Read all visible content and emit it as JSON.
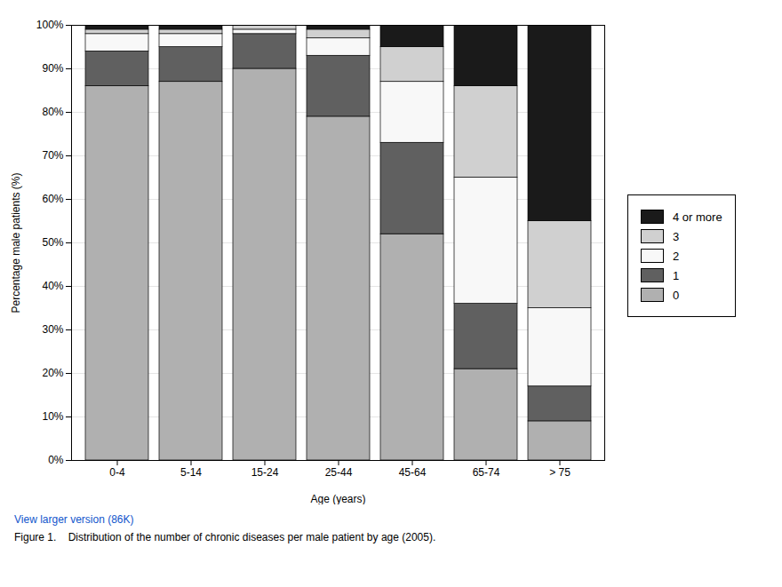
{
  "chart_data": {
    "type": "bar",
    "stacked": true,
    "xlabel": "Age (years)",
    "ylabel": "Percentage male patients (%)",
    "categories": [
      "0-4",
      "5-14",
      "15-24",
      "25-44",
      "45-64",
      "65-74",
      "> 75"
    ],
    "series": [
      {
        "name": "0",
        "color": "#b0b0b0",
        "values": [
          86,
          87,
          90,
          79,
          52,
          21,
          9
        ]
      },
      {
        "name": "1",
        "color": "#606060",
        "values": [
          8,
          8,
          8,
          14,
          21,
          15,
          8
        ]
      },
      {
        "name": "2",
        "color": "#f8f8f8",
        "values": [
          4,
          3,
          1,
          4,
          14,
          29,
          18
        ]
      },
      {
        "name": "3",
        "color": "#d0d0d0",
        "values": [
          1,
          1,
          1,
          2,
          8,
          21,
          20
        ]
      },
      {
        "name": "4 or more",
        "color": "#1a1a1a",
        "values": [
          1,
          1,
          0,
          1,
          5,
          14,
          45
        ]
      }
    ],
    "ylim": [
      0,
      100
    ],
    "yticks": [
      {
        "value": 0,
        "label": "0%"
      },
      {
        "value": 10,
        "label": "10%"
      },
      {
        "value": 20,
        "label": "20%"
      },
      {
        "value": 30,
        "label": "30%"
      },
      {
        "value": 40,
        "label": "40%"
      },
      {
        "value": 50,
        "label": "50%"
      },
      {
        "value": 60,
        "label": "60%"
      },
      {
        "value": 70,
        "label": "70%"
      },
      {
        "value": 80,
        "label": "80%"
      },
      {
        "value": 90,
        "label": "90%"
      },
      {
        "value": 100,
        "label": "100%"
      }
    ],
    "grid": true,
    "legend": "right",
    "annotations": [
      {
        "text": "View larger version (86K)",
        "color": "#1155cc"
      },
      {
        "text": "Figure 1.    Distribution of the number of chronic diseases per male patient by age (2005)."
      }
    ]
  }
}
